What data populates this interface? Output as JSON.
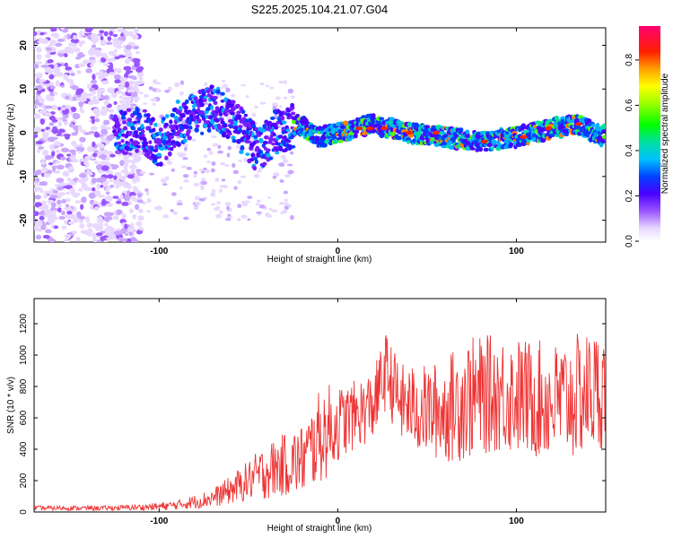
{
  "figure": {
    "title": "S225.2025.104.21.07.G04"
  },
  "chart_data": [
    {
      "type": "heatmap",
      "xlabel": "Height of straight line (km)",
      "ylabel": "Frequency (Hz)",
      "xlim": [
        -170,
        150
      ],
      "ylim": [
        -25,
        24
      ],
      "xticks": [
        "-100",
        "0",
        "100"
      ],
      "yticks": [
        "20",
        "10",
        "0",
        "-10",
        "-20"
      ],
      "colorbar": {
        "label": "Normalized spectral amplitude",
        "range": [
          0,
          0.95
        ],
        "ticks": [
          "0.0",
          "0.2",
          "0.4",
          "0.6",
          "0.8"
        ]
      },
      "ridge": [
        {
          "x": -120,
          "y": 0
        },
        {
          "x": -110,
          "y": 1
        },
        {
          "x": -100,
          "y": -3
        },
        {
          "x": -90,
          "y": 2
        },
        {
          "x": -80,
          "y": 4
        },
        {
          "x": -68,
          "y": 6
        },
        {
          "x": -55,
          "y": 1
        },
        {
          "x": -45,
          "y": -4
        },
        {
          "x": -35,
          "y": 0
        },
        {
          "x": -22,
          "y": 2
        },
        {
          "x": -10,
          "y": -1
        },
        {
          "x": 0,
          "y": 0
        },
        {
          "x": 10,
          "y": 1
        },
        {
          "x": 20,
          "y": 2
        },
        {
          "x": 40,
          "y": 0
        },
        {
          "x": 60,
          "y": -1
        },
        {
          "x": 80,
          "y": -2
        },
        {
          "x": 100,
          "y": -1
        },
        {
          "x": 120,
          "y": 1
        },
        {
          "x": 135,
          "y": 2
        },
        {
          "x": 148,
          "y": -1
        }
      ]
    },
    {
      "type": "line",
      "xlabel": "Height of straight line (km)",
      "ylabel": "SNR (10 * v/v)",
      "xlim": [
        -170,
        150
      ],
      "ylim": [
        0,
        1360
      ],
      "xticks": [
        "-100",
        "0",
        "100"
      ],
      "yticks": [
        "0",
        "200",
        "400",
        "600",
        "800",
        "1000",
        "1200"
      ],
      "series": [
        {
          "color": "#ee3333",
          "x": [
            -170,
            -150,
            -130,
            -110,
            -100,
            -90,
            -80,
            -70,
            -60,
            -50,
            -40,
            -30,
            -20,
            -15,
            -10,
            -5,
            0,
            10,
            20,
            27,
            35,
            45,
            60,
            70,
            80,
            90,
            100,
            110,
            120,
            130,
            140,
            150
          ],
          "mean": [
            25,
            25,
            25,
            30,
            35,
            45,
            65,
            90,
            140,
            200,
            260,
            300,
            330,
            400,
            480,
            520,
            560,
            620,
            680,
            900,
            700,
            650,
            640,
            720,
            740,
            760,
            740,
            720,
            700,
            720,
            760,
            780
          ],
          "amp": [
            15,
            15,
            15,
            20,
            25,
            30,
            45,
            60,
            90,
            130,
            180,
            200,
            230,
            260,
            300,
            300,
            240,
            220,
            230,
            250,
            250,
            280,
            330,
            400,
            380,
            380,
            380,
            380,
            380,
            400,
            400,
            380
          ]
        }
      ]
    }
  ]
}
